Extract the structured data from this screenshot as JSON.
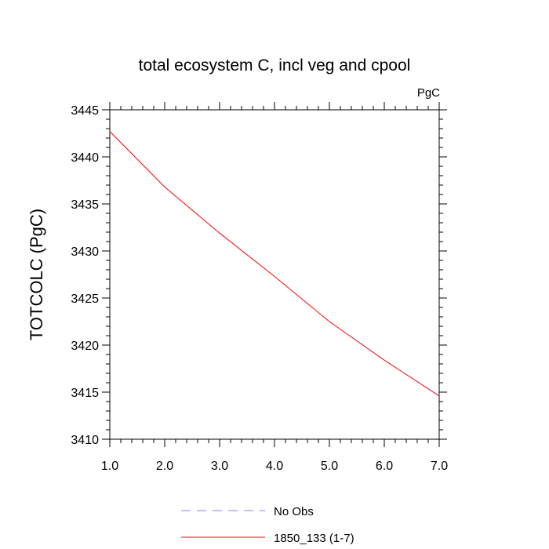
{
  "chart_data": {
    "type": "line",
    "title": "total ecosystem C, incl veg and cpool",
    "units_label": "PgC",
    "xlabel": "",
    "ylabel": "TOTCOLC  (PgC)",
    "xlim": [
      1.0,
      7.0
    ],
    "ylim": [
      3410,
      3445
    ],
    "x_ticks": [
      1,
      2,
      3,
      4,
      5,
      6,
      7
    ],
    "x_tick_labels": [
      "1.0",
      "2.0",
      "3.0",
      "4.0",
      "5.0",
      "6.0",
      "7.0"
    ],
    "y_ticks": [
      3410,
      3415,
      3420,
      3425,
      3430,
      3435,
      3440,
      3445
    ],
    "y_tick_labels": [
      "3410",
      "3415",
      "3420",
      "3425",
      "3430",
      "3435",
      "3440",
      "3445"
    ],
    "grid": false,
    "legend_position": "bottom",
    "series": [
      {
        "name": "No Obs",
        "style": "dashed",
        "color": "#8080ff",
        "x": [],
        "values": []
      },
      {
        "name": "1850_133 (1-7)",
        "style": "solid",
        "color": "#ff0000",
        "x": [
          1,
          2,
          3,
          4,
          5,
          6,
          7
        ],
        "values": [
          3442.7,
          3436.8,
          3431.9,
          3427.3,
          3422.5,
          3418.4,
          3414.6
        ]
      }
    ]
  }
}
